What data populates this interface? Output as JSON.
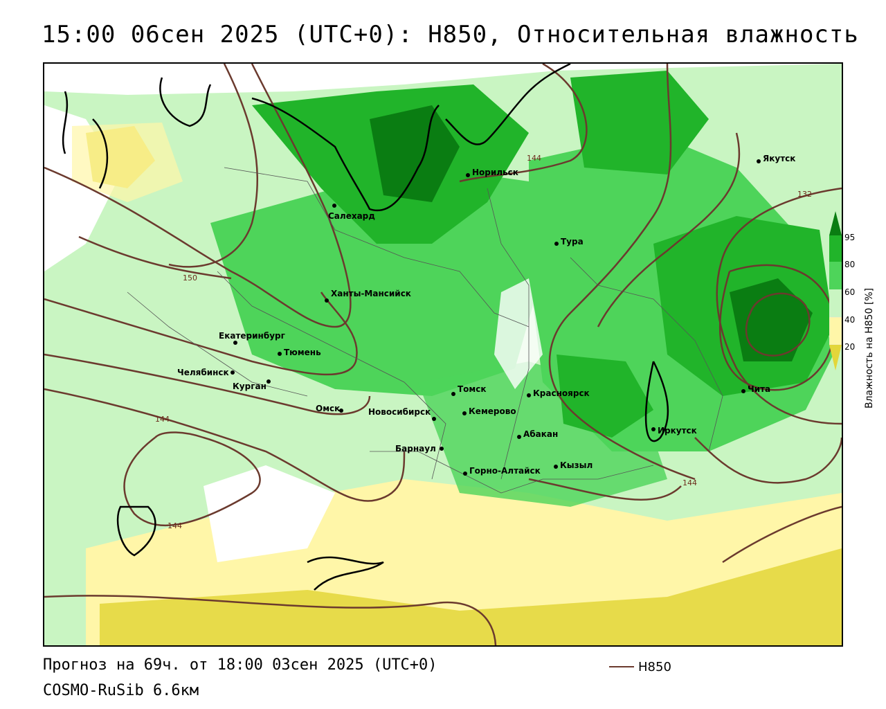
{
  "title": "15:00 06сен 2025 (UTC+0): H850, Относительная влажность",
  "footer": {
    "forecast": "Прогноз на 69ч. от 18:00 03сен 2025 (UTC+0)",
    "model": "COSMO-RuSib 6.6км"
  },
  "legend": {
    "line_label": "H850",
    "line_color": "#6b3a2e"
  },
  "colorbar": {
    "title": "Влажность на H850 [%]",
    "ticks": [
      "95",
      "80",
      "60",
      "40",
      "20"
    ],
    "colors": [
      "#0a7d12",
      "#21b42a",
      "#4ed45a",
      "#c9f5c2",
      "#ffffff",
      "#fff6a8",
      "#e3d63a"
    ]
  },
  "cities": [
    {
      "name": "Якутск"
    },
    {
      "name": "Норильск"
    },
    {
      "name": "Салехард"
    },
    {
      "name": "Тура"
    },
    {
      "name": "Ханты-Мансийск"
    },
    {
      "name": "Екатеринбург"
    },
    {
      "name": "Тюмень"
    },
    {
      "name": "Челябинск"
    },
    {
      "name": "Курган"
    },
    {
      "name": "Омск"
    },
    {
      "name": "Новосибирск"
    },
    {
      "name": "Томск"
    },
    {
      "name": "Кемерово"
    },
    {
      "name": "Красноярск"
    },
    {
      "name": "Барнаул"
    },
    {
      "name": "Абакан"
    },
    {
      "name": "Горно-Алтайск"
    },
    {
      "name": "Кызыл"
    },
    {
      "name": "Иркутск"
    },
    {
      "name": "Чита"
    }
  ],
  "contour_labels": [
    "144",
    "132",
    "150",
    "144",
    "144",
    "144"
  ]
}
